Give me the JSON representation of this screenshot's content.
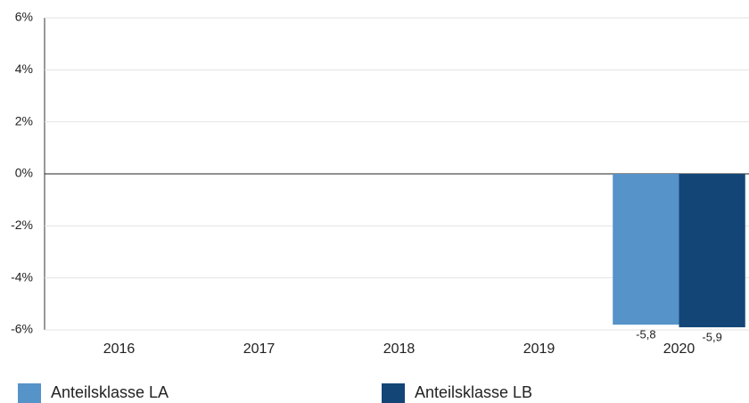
{
  "chart_data": {
    "type": "bar",
    "categories": [
      "2016",
      "2017",
      "2018",
      "2019",
      "2020"
    ],
    "series": [
      {
        "name": "Anteilsklasse LA",
        "color": "#5593c8",
        "values": [
          null,
          null,
          null,
          null,
          -5.8
        ],
        "value_labels": [
          null,
          null,
          null,
          null,
          "-5,8"
        ]
      },
      {
        "name": "Anteilsklasse LB",
        "color": "#134677",
        "values": [
          null,
          null,
          null,
          null,
          -5.9
        ],
        "value_labels": [
          null,
          null,
          null,
          null,
          "-5,9"
        ]
      }
    ],
    "ylim": [
      -6,
      6
    ],
    "yticks": [
      {
        "value": -6,
        "label": "-6%"
      },
      {
        "value": -4,
        "label": "-4%"
      },
      {
        "value": -2,
        "label": "-2%"
      },
      {
        "value": 0,
        "label": "0%"
      },
      {
        "value": 2,
        "label": "2%"
      },
      {
        "value": 4,
        "label": "4%"
      },
      {
        "value": 6,
        "label": "6%"
      }
    ],
    "grid": true
  }
}
